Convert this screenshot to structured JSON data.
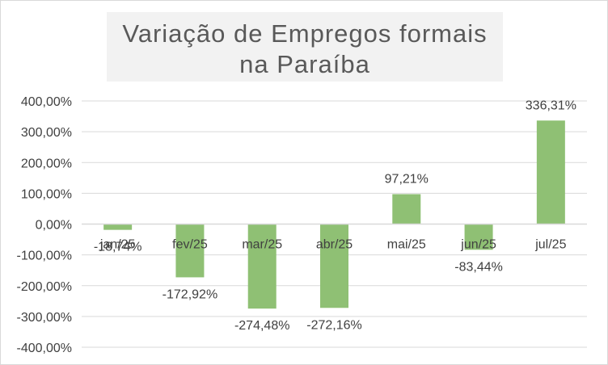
{
  "chart_data": {
    "type": "bar",
    "title": "Variação de Empregos formais na Paraíba",
    "categories": [
      "jan/25",
      "fev/25",
      "mar/25",
      "abr/25",
      "mai/25",
      "jun/25",
      "jul/25"
    ],
    "series": [
      {
        "values": [
          -18.74,
          -172.92,
          -274.48,
          -272.16,
          97.21,
          -83.44,
          336.31
        ],
        "data_labels": [
          "-18,74%",
          "-172,92%",
          "-274,48%",
          "-272,16%",
          "97,21%",
          "-83,44%",
          "336,31%"
        ]
      }
    ],
    "ylim": [
      -400,
      400
    ],
    "yticks": [
      400,
      300,
      200,
      100,
      0,
      -100,
      -200,
      -300,
      -400
    ],
    "ytick_labels": [
      "400,00%",
      "300,00%",
      "200,00%",
      "100,00%",
      "0,00%",
      "-100,00%",
      "-200,00%",
      "-300,00%",
      "-400,00%"
    ],
    "grid": true,
    "legend": "none",
    "bar_color": "#8fc074",
    "gridline_color": "#d9d9d9",
    "text_color": "#404040"
  }
}
